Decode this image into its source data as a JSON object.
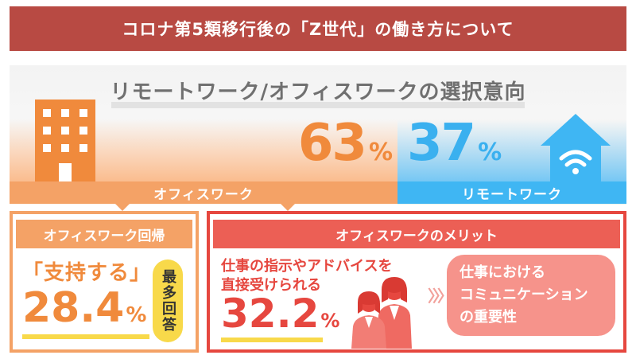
{
  "title": "コロナ第5類移行後の「Z世代」の働き方について",
  "section_heading": "リモートワーク/オフィスワークの選択意向",
  "office": {
    "percent_value": "63",
    "percent_sign": "%",
    "bar_label": "オフィスワーク",
    "color": "#f4a266"
  },
  "remote": {
    "percent_value": "37",
    "percent_sign": "%",
    "bar_label": "リモートワーク",
    "color": "#3fb6f3"
  },
  "office_return": {
    "header": "オフィスワーク回帰",
    "support_label": "「支持する」",
    "percent_value": "28.4",
    "percent_sign": "%",
    "badge": "最多回答"
  },
  "merit": {
    "header": "オフィスワークのメリット",
    "line1": "仕事の指示やアドバイスを",
    "line2": "直接受けられる",
    "percent_value": "32.2",
    "percent_sign": "%",
    "chevrons": "〉〉〉",
    "bubble_lines": [
      "仕事における",
      "コミュニケーション",
      "の重要性"
    ],
    "color": "#e6473f"
  }
}
